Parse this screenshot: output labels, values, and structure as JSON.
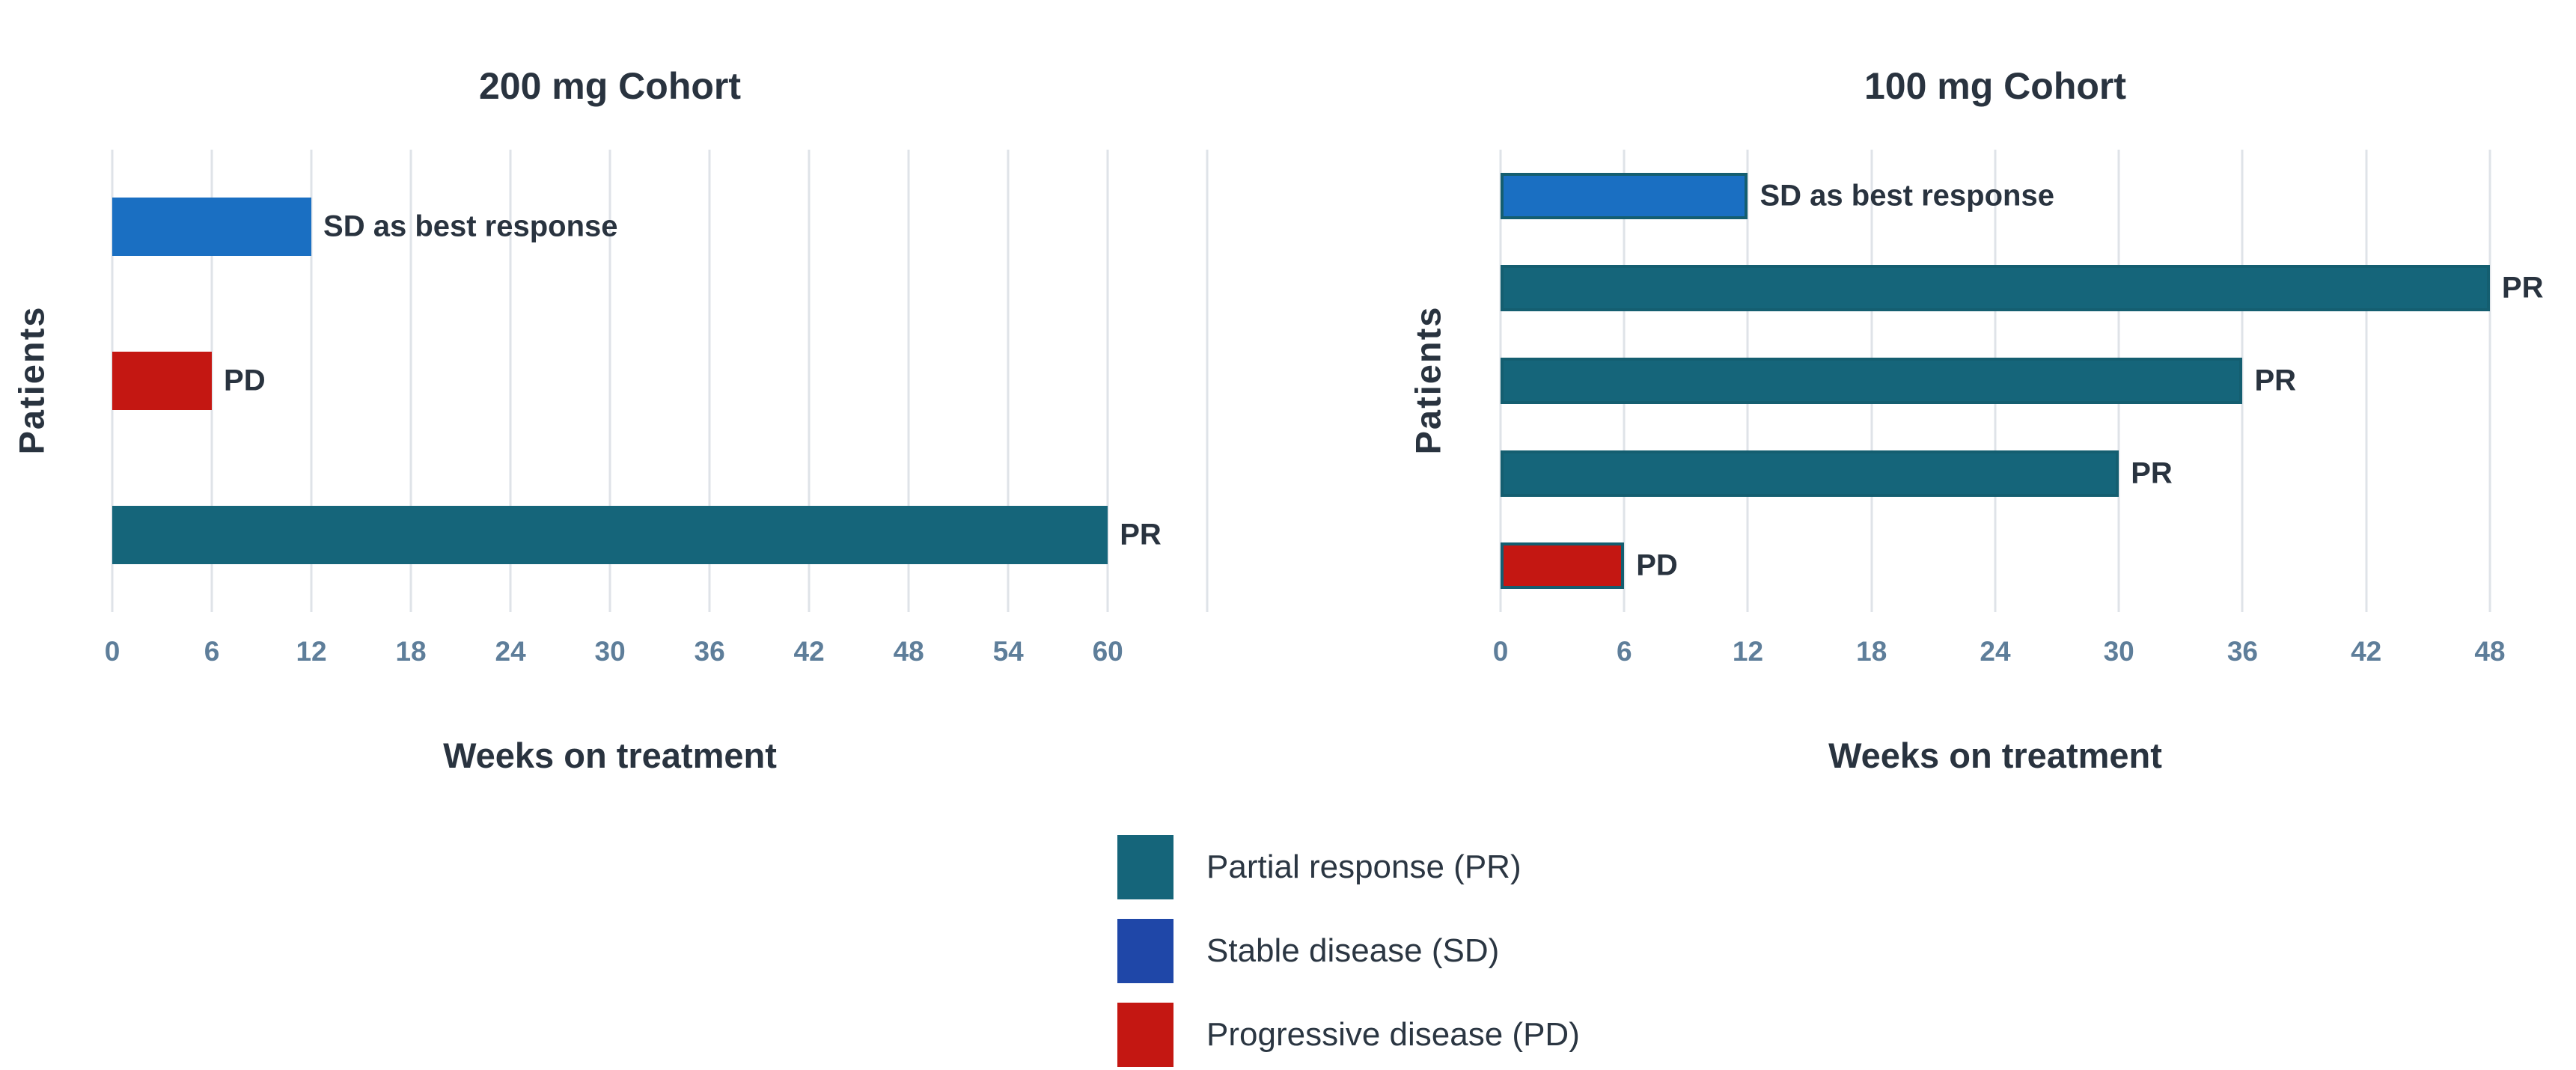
{
  "figure": {
    "background": "#ffffff",
    "legend_position": "bottom-center"
  },
  "colors": {
    "pr_teal": "#15657a",
    "sd_bar_blue": "#1a6fc2",
    "pd_red": "#c41712",
    "sd_legend_navy": "#1f47a8",
    "bar_border_teal": "#145e70",
    "gridline": "#dfe3e8",
    "tick_text": "#5e7e9a",
    "dark_text": "#29333f"
  },
  "legend": {
    "items": [
      {
        "label": "Partial response (PR)",
        "color": "#15657a"
      },
      {
        "label": "Stable disease (SD)",
        "color": "#1f47a8"
      },
      {
        "label": "Progressive disease (PD)",
        "color": "#c41712"
      }
    ]
  },
  "chart_data": [
    {
      "type": "bar",
      "orientation": "horizontal",
      "title": "200 mg Cohort",
      "xlabel": "Weeks on treatment",
      "ylabel": "Patients",
      "grid": true,
      "xlim": [
        0,
        70
      ],
      "x_tick_weeks": [
        0,
        6,
        12,
        18,
        24,
        30,
        36,
        42,
        48,
        54,
        60
      ],
      "grid_weeks": [
        0,
        6,
        12,
        18,
        24,
        30,
        36,
        42,
        48,
        54,
        60,
        66
      ],
      "bars": [
        {
          "label": "SD as best response",
          "weeks": 12,
          "response": "SD",
          "bordered": false
        },
        {
          "label": "PD",
          "weeks": 6,
          "response": "PD",
          "bordered": false
        },
        {
          "label": "PR",
          "weeks": 60,
          "response": "PR",
          "bordered": false
        }
      ]
    },
    {
      "type": "bar",
      "orientation": "horizontal",
      "title": "100 mg Cohort",
      "xlabel": "Weeks on treatment",
      "ylabel": "Patients",
      "grid": true,
      "xlim": [
        0,
        52
      ],
      "x_tick_weeks": [
        0,
        6,
        12,
        18,
        24,
        30,
        36,
        42,
        48
      ],
      "grid_weeks": [
        0,
        6,
        12,
        18,
        24,
        30,
        36,
        42,
        48
      ],
      "bars": [
        {
          "label": "SD as best response",
          "weeks": 12,
          "response": "SD",
          "bordered": true
        },
        {
          "label": "PR",
          "weeks": 48,
          "response": "PR",
          "bordered": true
        },
        {
          "label": "PR",
          "weeks": 36,
          "response": "PR",
          "bordered": true
        },
        {
          "label": "PR",
          "weeks": 30,
          "response": "PR",
          "bordered": true
        },
        {
          "label": "PD",
          "weeks": 6,
          "response": "PD",
          "bordered": true
        }
      ]
    }
  ]
}
